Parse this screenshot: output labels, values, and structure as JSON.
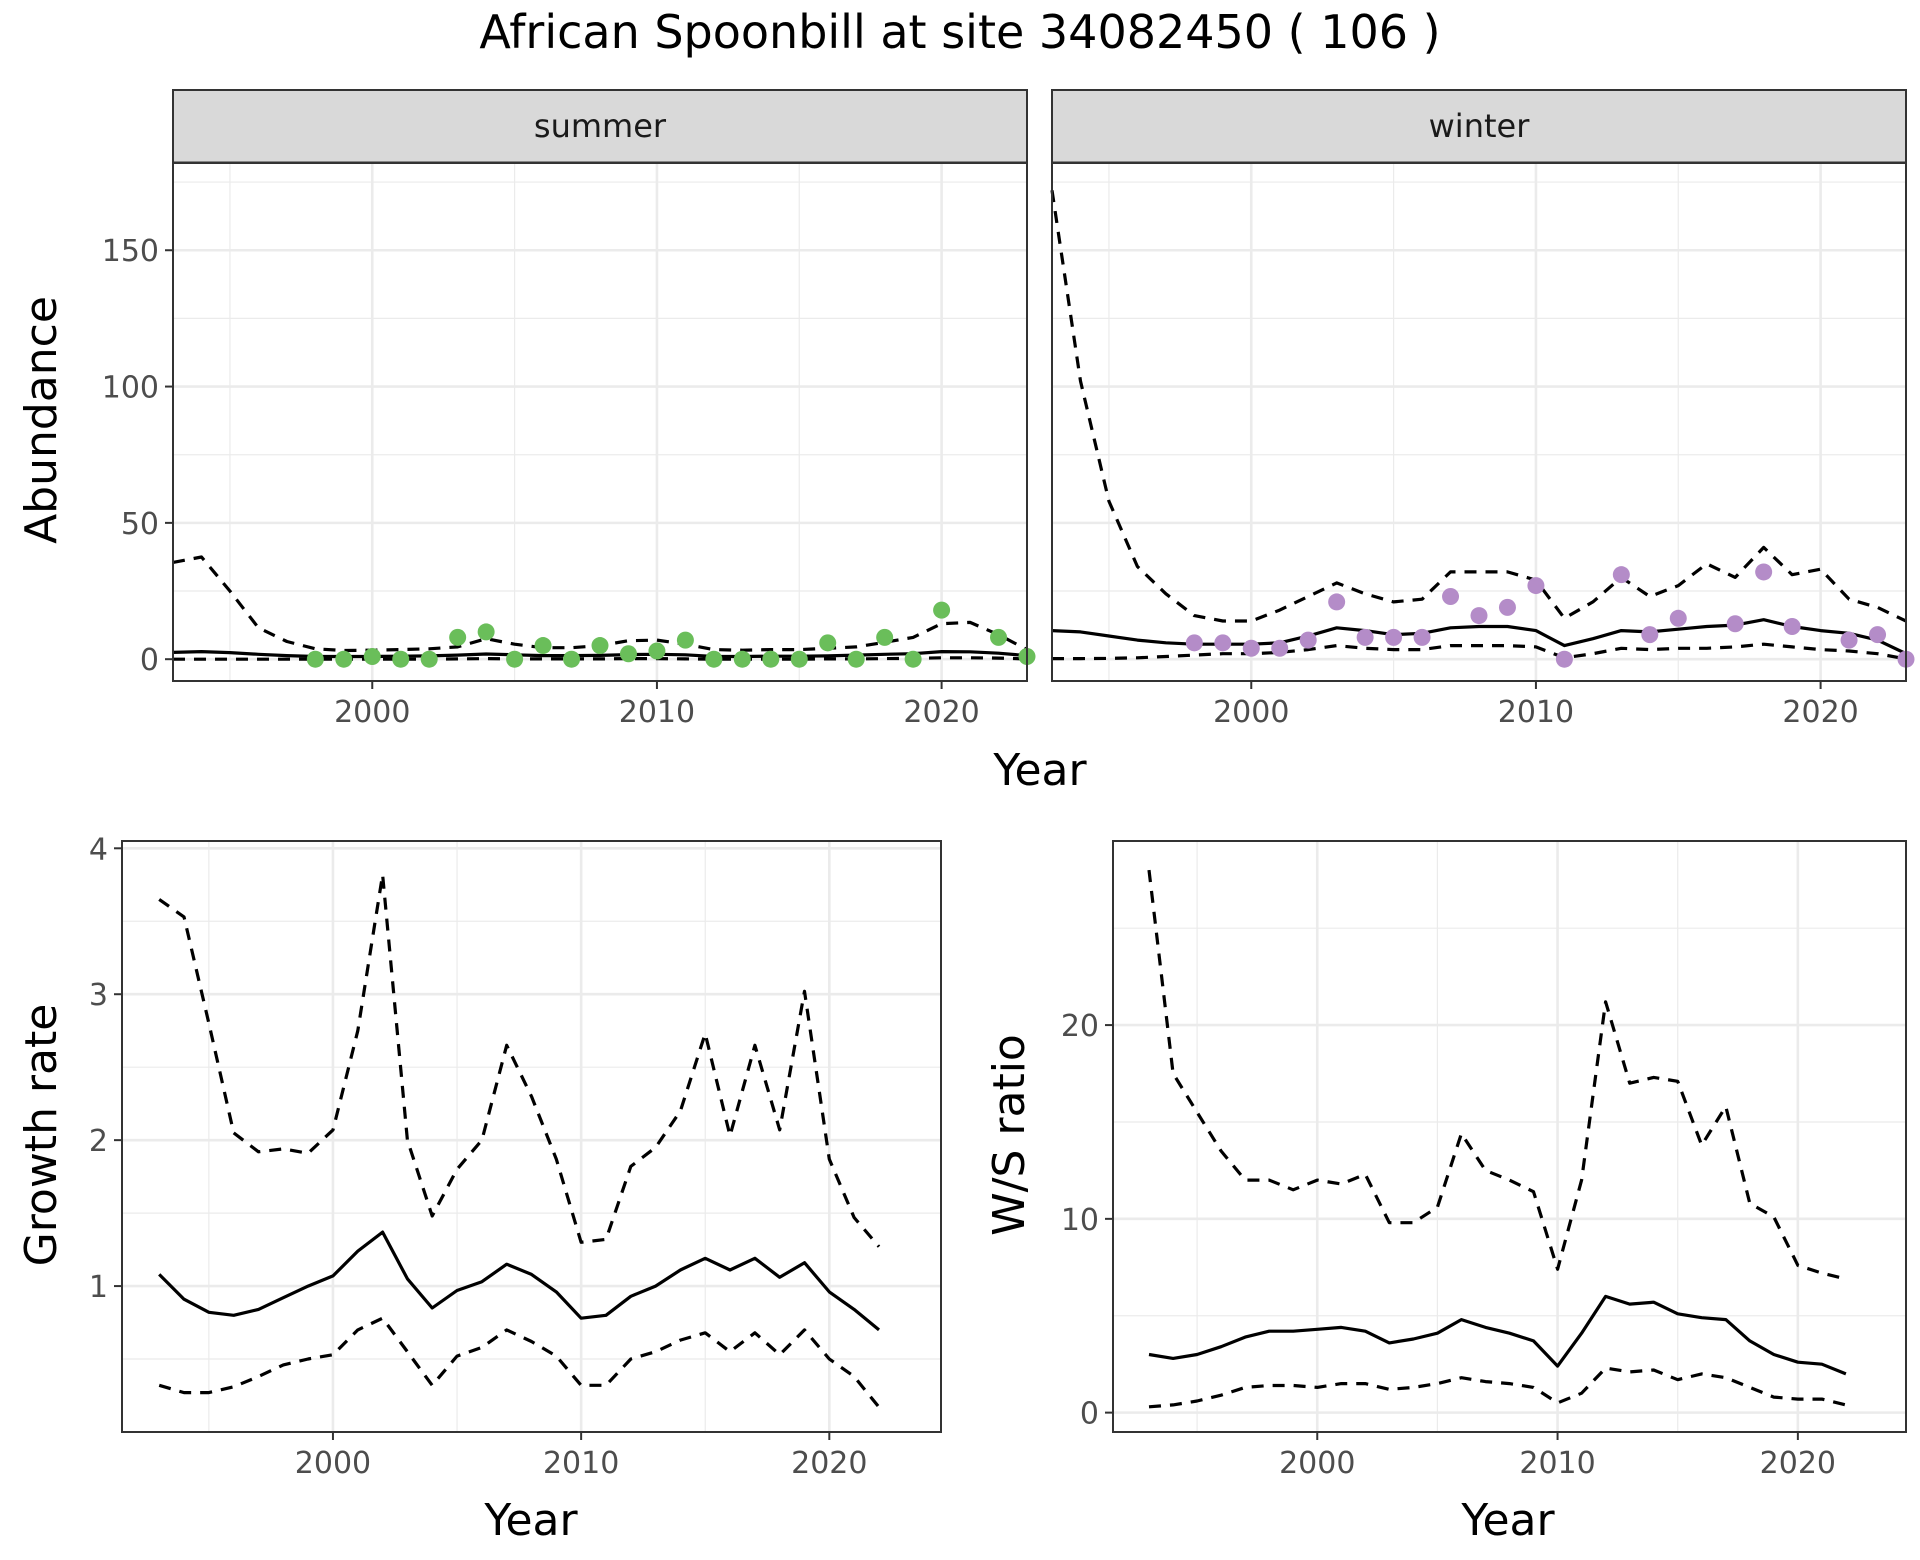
{
  "title": "African Spoonbill at site 34082450 ( 106 )",
  "colors": {
    "summer_points": "#6ABE5A",
    "winter_points": "#B48CC8",
    "lines": "#000000",
    "grid": "#ebebeb",
    "strip": "#d9d9d9"
  },
  "chart_data": [
    {
      "type": "line",
      "panel": "summer",
      "strip_label": "summer",
      "ylabel": "Abundance",
      "xlabel": "Year",
      "xlim": [
        1993,
        2023
      ],
      "ylim": [
        -8,
        182
      ],
      "xticks": [
        "2000",
        "2010",
        "2020"
      ],
      "yticks": [
        "0",
        "50",
        "100",
        "150"
      ],
      "grid": true,
      "series": [
        {
          "style": "solid",
          "x": [
            1993,
            1994,
            1995,
            1996,
            1997,
            1998,
            1999,
            2000,
            2001,
            2002,
            2003,
            2004,
            2005,
            2006,
            2007,
            2008,
            2009,
            2010,
            2011,
            2012,
            2013,
            2014,
            2015,
            2016,
            2017,
            2018,
            2019,
            2020,
            2021,
            2022,
            2023
          ],
          "y": [
            2.5,
            2.8,
            2.4,
            1.8,
            1.3,
            1.0,
            1.0,
            1.0,
            1.1,
            1.2,
            1.5,
            1.9,
            1.6,
            1.3,
            1.3,
            1.4,
            1.7,
            1.8,
            1.6,
            1.0,
            1.0,
            1.1,
            1.1,
            1.2,
            1.5,
            1.8,
            2.0,
            2.8,
            2.7,
            2.2,
            1.3
          ]
        },
        {
          "style": "dashed",
          "x": [
            1993,
            1994,
            1995,
            1996,
            1997,
            1998,
            1999,
            2000,
            2001,
            2002,
            2003,
            2004,
            2005,
            2006,
            2007,
            2008,
            2009,
            2010,
            2011,
            2012,
            2013,
            2014,
            2015,
            2016,
            2017,
            2018,
            2019,
            2020,
            2021,
            2022,
            2023
          ],
          "y": [
            35.5,
            37.5,
            25.0,
            11.5,
            6.5,
            3.8,
            3.2,
            3.3,
            3.5,
            3.8,
            4.5,
            7.5,
            5.5,
            4.2,
            4.2,
            5.0,
            6.8,
            7.0,
            5.5,
            3.5,
            3.3,
            3.5,
            3.5,
            4.0,
            4.5,
            6.2,
            8.0,
            13.0,
            13.5,
            9.0,
            3.5
          ]
        },
        {
          "style": "dashed",
          "x": [
            1993,
            1994,
            1995,
            1996,
            1997,
            1998,
            1999,
            2000,
            2001,
            2002,
            2003,
            2004,
            2005,
            2006,
            2007,
            2008,
            2009,
            2010,
            2011,
            2012,
            2013,
            2014,
            2015,
            2016,
            2017,
            2018,
            2019,
            2020,
            2021,
            2022,
            2023
          ],
          "y": [
            0,
            0,
            0,
            0,
            0,
            0,
            0,
            0,
            0,
            0,
            0.1,
            0.2,
            0.1,
            0.1,
            0.1,
            0.1,
            0.2,
            0.2,
            0.1,
            0,
            0,
            0,
            0,
            0.1,
            0.1,
            0.2,
            0.3,
            0.5,
            0.5,
            0.4,
            0.1
          ]
        }
      ],
      "points": {
        "x": [
          1998,
          1999,
          2000,
          2001,
          2002,
          2003,
          2004,
          2005,
          2006,
          2007,
          2008,
          2009,
          2010,
          2011,
          2012,
          2013,
          2014,
          2015,
          2016,
          2017,
          2018,
          2019,
          2020,
          2022,
          2023
        ],
        "y": [
          0,
          0,
          1,
          0,
          0,
          8,
          10,
          0,
          5,
          0,
          5,
          2,
          3,
          7,
          0,
          0,
          0,
          0,
          6,
          0,
          8,
          0,
          18,
          8,
          1
        ]
      }
    },
    {
      "type": "line",
      "panel": "winter",
      "strip_label": "winter",
      "ylabel": "",
      "xlabel": "Year",
      "xlim": [
        1993,
        2023
      ],
      "ylim": [
        -8,
        182
      ],
      "xticks": [
        "2000",
        "2010",
        "2020"
      ],
      "yticks": [],
      "grid": true,
      "series": [
        {
          "style": "solid",
          "x": [
            1993,
            1994,
            1995,
            1996,
            1997,
            1998,
            1999,
            2000,
            2001,
            2002,
            2003,
            2004,
            2005,
            2006,
            2007,
            2008,
            2009,
            2010,
            2011,
            2012,
            2013,
            2014,
            2015,
            2016,
            2017,
            2018,
            2019,
            2020,
            2021,
            2022,
            2023
          ],
          "y": [
            10.5,
            10.0,
            8.5,
            7.0,
            6.0,
            5.5,
            5.5,
            5.5,
            6.0,
            8.5,
            11.5,
            10.5,
            9.0,
            9.5,
            11.5,
            12.0,
            12.0,
            10.5,
            5.0,
            7.5,
            10.5,
            10.0,
            11.0,
            12.0,
            12.5,
            14.5,
            12.0,
            10.5,
            9.5,
            7.0,
            2.0
          ]
        },
        {
          "style": "dashed",
          "x": [
            1993,
            1994,
            1995,
            1996,
            1997,
            1998,
            1999,
            2000,
            2001,
            2002,
            2003,
            2004,
            2005,
            2006,
            2007,
            2008,
            2009,
            2010,
            2011,
            2012,
            2013,
            2014,
            2015,
            2016,
            2017,
            2018,
            2019,
            2020,
            2021,
            2022,
            2023
          ],
          "y": [
            172,
            102,
            58,
            34,
            24,
            16,
            14,
            14,
            18,
            23,
            28,
            24,
            21,
            22,
            32,
            32,
            32,
            29,
            15,
            21,
            30,
            23,
            27,
            35,
            30,
            41,
            31,
            33,
            22,
            19,
            14
          ]
        },
        {
          "style": "dashed",
          "x": [
            1993,
            1994,
            1995,
            1996,
            1997,
            1998,
            1999,
            2000,
            2001,
            2002,
            2003,
            2004,
            2005,
            2006,
            2007,
            2008,
            2009,
            2010,
            2011,
            2012,
            2013,
            2014,
            2015,
            2016,
            2017,
            2018,
            2019,
            2020,
            2021,
            2022,
            2023
          ],
          "y": [
            0.2,
            0.2,
            0.3,
            0.5,
            1.0,
            1.5,
            2.0,
            2.0,
            2.5,
            3.5,
            5.0,
            4.0,
            3.5,
            3.5,
            5.0,
            5.0,
            5.0,
            4.5,
            0.5,
            2.0,
            4.0,
            3.5,
            4.0,
            4.0,
            4.5,
            5.5,
            4.5,
            3.5,
            3.0,
            2.0,
            0.1
          ]
        }
      ],
      "points": {
        "x": [
          1998,
          1999,
          2000,
          2001,
          2002,
          2003,
          2004,
          2005,
          2006,
          2007,
          2008,
          2009,
          2010,
          2011,
          2013,
          2014,
          2015,
          2017,
          2018,
          2019,
          2021,
          2022,
          2023
        ],
        "y": [
          6,
          6,
          4,
          4,
          7,
          21,
          8,
          8,
          8,
          23,
          16,
          19,
          27,
          0,
          31,
          9,
          15,
          13,
          32,
          12,
          7,
          9,
          0
        ]
      }
    },
    {
      "type": "line",
      "panel": "growth",
      "ylabel": "Growth rate",
      "xlabel": "Year",
      "xlim": [
        1991.5,
        2024.5
      ],
      "ylim": [
        0.0,
        4.05
      ],
      "xticks": [
        "2000",
        "2010",
        "2020"
      ],
      "yticks": [
        "1",
        "2",
        "3",
        "4"
      ],
      "grid": true,
      "series": [
        {
          "style": "solid",
          "x": [
            1993,
            1994,
            1995,
            1996,
            1997,
            1998,
            1999,
            2000,
            2001,
            2002,
            2003,
            2004,
            2005,
            2006,
            2007,
            2008,
            2009,
            2010,
            2011,
            2012,
            2013,
            2014,
            2015,
            2016,
            2017,
            2018,
            2019,
            2020,
            2021,
            2022
          ],
          "y": [
            1.08,
            0.91,
            0.82,
            0.8,
            0.84,
            0.92,
            1.0,
            1.07,
            1.24,
            1.37,
            1.05,
            0.85,
            0.97,
            1.03,
            1.15,
            1.08,
            0.96,
            0.78,
            0.8,
            0.93,
            1.0,
            1.11,
            1.19,
            1.11,
            1.19,
            1.06,
            1.16,
            0.96,
            0.84,
            0.7
          ]
        },
        {
          "style": "dashed",
          "x": [
            1993,
            1994,
            1995,
            1996,
            1997,
            1998,
            1999,
            2000,
            2001,
            2002,
            2003,
            2004,
            2005,
            2006,
            2007,
            2008,
            2009,
            2010,
            2011,
            2012,
            2013,
            2014,
            2015,
            2016,
            2017,
            2018,
            2019,
            2020,
            2021,
            2022
          ],
          "y": [
            3.65,
            3.53,
            2.8,
            2.05,
            1.92,
            1.94,
            1.91,
            2.07,
            2.75,
            3.82,
            2.0,
            1.48,
            1.8,
            2.0,
            2.65,
            2.3,
            1.87,
            1.3,
            1.32,
            1.82,
            1.95,
            2.2,
            2.73,
            2.03,
            2.65,
            2.07,
            3.02,
            1.87,
            1.47,
            1.27
          ]
        },
        {
          "style": "dashed",
          "x": [
            1993,
            1994,
            1995,
            1996,
            1997,
            1998,
            1999,
            2000,
            2001,
            2002,
            2003,
            2004,
            2005,
            2006,
            2007,
            2008,
            2009,
            2010,
            2011,
            2012,
            2013,
            2014,
            2015,
            2016,
            2017,
            2018,
            2019,
            2020,
            2021,
            2022
          ],
          "y": [
            0.32,
            0.27,
            0.27,
            0.31,
            0.38,
            0.46,
            0.5,
            0.53,
            0.7,
            0.78,
            0.55,
            0.32,
            0.52,
            0.58,
            0.7,
            0.62,
            0.52,
            0.32,
            0.32,
            0.5,
            0.55,
            0.63,
            0.68,
            0.55,
            0.68,
            0.53,
            0.7,
            0.5,
            0.38,
            0.17
          ]
        }
      ]
    },
    {
      "type": "line",
      "panel": "ratio",
      "ylabel": "W/S ratio",
      "xlabel": "Year",
      "xlim": [
        1991.5,
        2024.5
      ],
      "ylim": [
        -1.0,
        29.5
      ],
      "xticks": [
        "2000",
        "2010",
        "2020"
      ],
      "yticks": [
        "0",
        "10",
        "20"
      ],
      "grid": true,
      "series": [
        {
          "style": "solid",
          "x": [
            1993,
            1994,
            1995,
            1996,
            1997,
            1998,
            1999,
            2000,
            2001,
            2002,
            2003,
            2004,
            2005,
            2006,
            2007,
            2008,
            2009,
            2010,
            2011,
            2012,
            2013,
            2014,
            2015,
            2016,
            2017,
            2018,
            2019,
            2020,
            2021,
            2022
          ],
          "y": [
            3.0,
            2.8,
            3.0,
            3.4,
            3.9,
            4.2,
            4.2,
            4.3,
            4.4,
            4.2,
            3.6,
            3.8,
            4.1,
            4.8,
            4.4,
            4.1,
            3.7,
            2.4,
            4.1,
            6.0,
            5.6,
            5.7,
            5.1,
            4.9,
            4.8,
            3.7,
            3.0,
            2.6,
            2.5,
            2.0
          ]
        },
        {
          "style": "dashed",
          "x": [
            1993,
            1994,
            1995,
            1996,
            1997,
            1998,
            1999,
            2000,
            2001,
            2002,
            2003,
            2004,
            2005,
            2006,
            2007,
            2008,
            2009,
            2010,
            2011,
            2012,
            2013,
            2014,
            2015,
            2016,
            2017,
            2018,
            2019,
            2020,
            2021,
            2022
          ],
          "y": [
            28.0,
            17.5,
            15.5,
            13.5,
            12.0,
            12.0,
            11.5,
            12.0,
            11.8,
            12.3,
            9.8,
            9.8,
            10.6,
            14.4,
            12.5,
            12.0,
            11.4,
            7.4,
            12.0,
            21.2,
            17.0,
            17.3,
            17.1,
            13.8,
            15.8,
            10.8,
            10.1,
            7.6,
            7.2,
            6.9
          ]
        },
        {
          "style": "dashed",
          "x": [
            1993,
            1994,
            1995,
            1996,
            1997,
            1998,
            1999,
            2000,
            2001,
            2002,
            2003,
            2004,
            2005,
            2006,
            2007,
            2008,
            2009,
            2010,
            2011,
            2012,
            2013,
            2014,
            2015,
            2016,
            2017,
            2018,
            2019,
            2020,
            2021,
            2022
          ],
          "y": [
            0.3,
            0.4,
            0.6,
            0.9,
            1.3,
            1.4,
            1.4,
            1.3,
            1.5,
            1.5,
            1.2,
            1.3,
            1.5,
            1.8,
            1.6,
            1.5,
            1.3,
            0.5,
            1.0,
            2.3,
            2.1,
            2.2,
            1.7,
            2.0,
            1.8,
            1.3,
            0.8,
            0.7,
            0.7,
            0.4
          ]
        }
      ]
    }
  ]
}
